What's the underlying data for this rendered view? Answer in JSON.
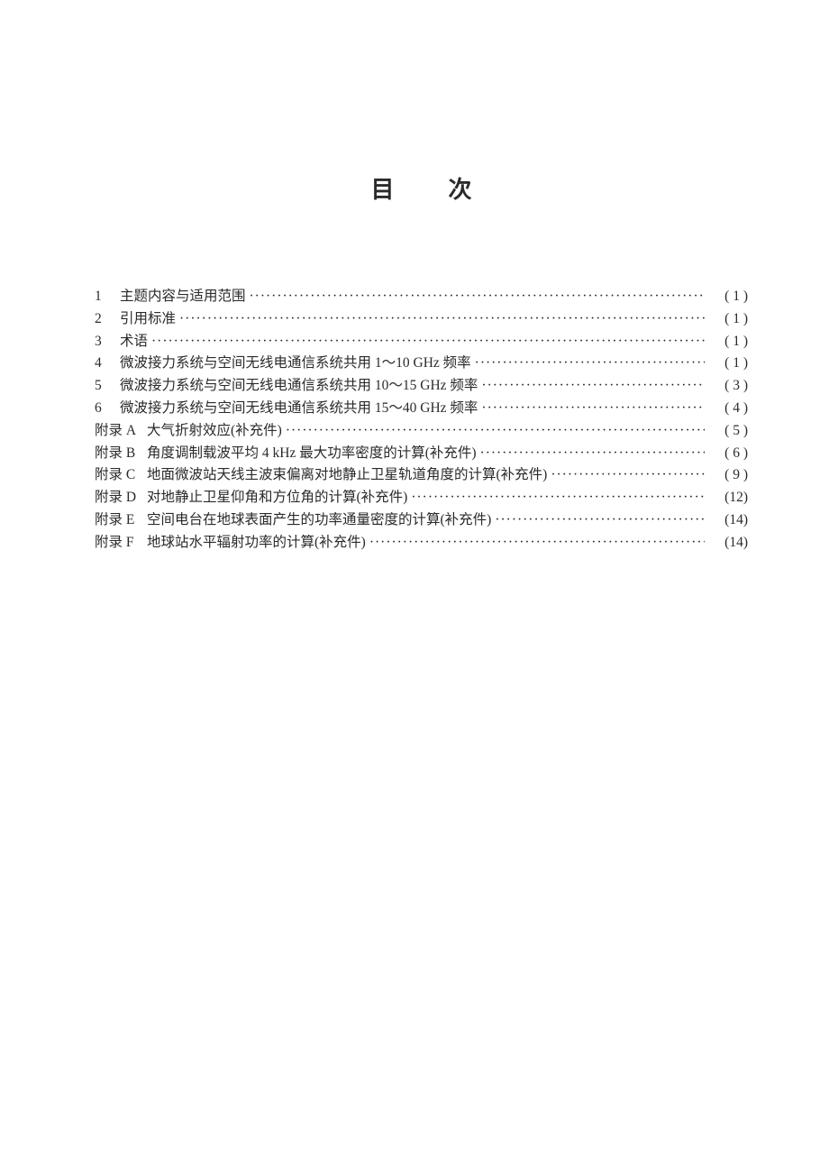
{
  "title": "目次",
  "toc": {
    "sections": [
      {
        "num": "1",
        "text": "主题内容与适用范围",
        "page": "( 1 )"
      },
      {
        "num": "2",
        "text": "引用标准",
        "page": "( 1 )"
      },
      {
        "num": "3",
        "text": "术语",
        "page": "( 1 )"
      },
      {
        "num": "4",
        "text": "微波接力系统与空间无线电通信系统共用 1～10 GHz 频率",
        "page": "( 1 )"
      },
      {
        "num": "5",
        "text": "微波接力系统与空间无线电通信系统共用 10～15 GHz 频率",
        "page": "( 3 )"
      },
      {
        "num": "6",
        "text": "微波接力系统与空间无线电通信系统共用 15～40 GHz 频率",
        "page": "( 4 )"
      }
    ],
    "appendices": [
      {
        "label": "附录 A",
        "text": "大气折射效应(补充件)",
        "page": "( 5 )"
      },
      {
        "label": "附录 B",
        "text": "角度调制载波平均 4 kHz 最大功率密度的计算(补充件)",
        "page": "( 6 )"
      },
      {
        "label": "附录 C",
        "text": "地面微波站天线主波束偏离对地静止卫星轨道角度的计算(补充件)",
        "page": "( 9 )"
      },
      {
        "label": "附录 D",
        "text": "对地静止卫星仰角和方位角的计算(补充件)",
        "page": "(12)"
      },
      {
        "label": "附录 E",
        "text": "空间电台在地球表面产生的功率通量密度的计算(补充件)",
        "page": "(14)"
      },
      {
        "label": "附录 F",
        "text": "地球站水平辐射功率的计算(补充件)",
        "page": "(14)"
      }
    ]
  },
  "style": {
    "text_color": "#2a2a2a",
    "background_color": "#ffffff",
    "title_fontsize": 26,
    "body_fontsize": 15.5
  }
}
